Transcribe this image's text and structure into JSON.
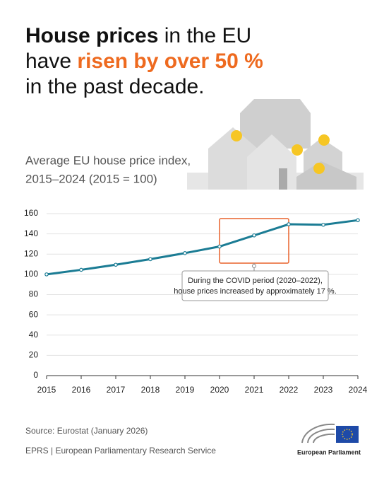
{
  "headline": [
    [
      "House prices",
      " in the EU"
    ],
    [
      "have ",
      "risen by over 50 %"
    ],
    [
      "in the past decade."
    ]
  ],
  "chart_data": {
    "type": "line",
    "subtitle": [
      "Average EU house price index,",
      "2015–2024 (2015 = 100)"
    ],
    "x": [
      2015,
      2016,
      2017,
      2018,
      2019,
      2020,
      2021,
      2022,
      2023,
      2024
    ],
    "series": [
      {
        "color": "#1b7c94",
        "values": [
          100,
          104.5,
          109.5,
          115,
          121,
          127.5,
          138.5,
          149.5,
          149,
          153.5
        ]
      }
    ],
    "xlim": [
      2015,
      2024
    ],
    "xticks": [
      2015,
      2016,
      2017,
      2018,
      2019,
      2020,
      2021,
      2022,
      2023,
      2024
    ],
    "ylim": [
      0,
      160
    ],
    "yticks": [
      0,
      20,
      40,
      60,
      80,
      100,
      120,
      140,
      160
    ],
    "grid": true,
    "highlight": {
      "x": [
        2020,
        2022
      ],
      "color": "#e8622c"
    },
    "annotation": [
      "During the COVID period (2020–2022),",
      "house prices increased by approximately 17 %."
    ]
  },
  "footer": {
    "source": "Source: Eurostat (January 2026)",
    "credit": "EPRS | European Parliamentary Research Service",
    "logo": "European Parliament"
  }
}
